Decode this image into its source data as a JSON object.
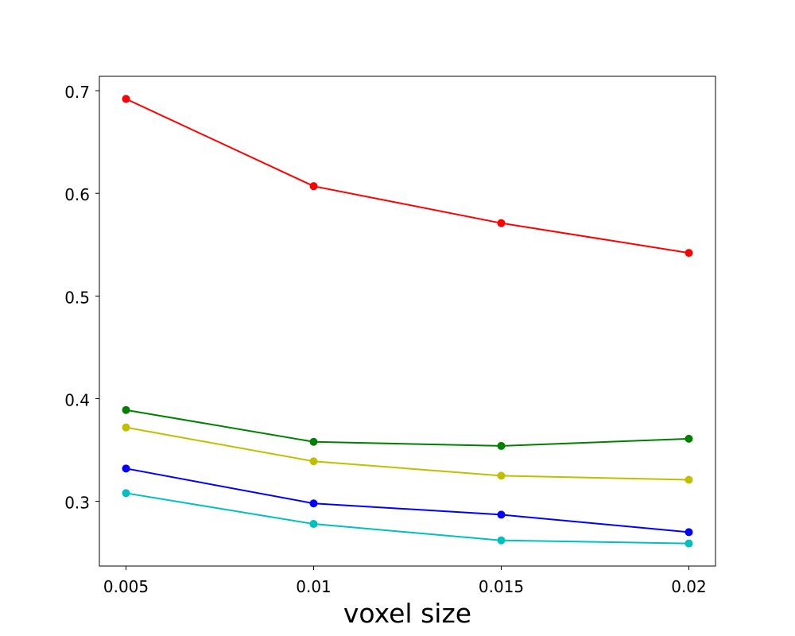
{
  "chart_data": {
    "type": "line",
    "title": "",
    "xlabel": "voxel size",
    "ylabel": "",
    "x": [
      0.005,
      0.01,
      0.015,
      0.02
    ],
    "x_tick_labels": [
      "0.005",
      "0.01",
      "0.015",
      "0.02"
    ],
    "xlim": [
      0.00429,
      0.02071
    ],
    "ylim": [
      0.237,
      0.714
    ],
    "y_ticks": [
      0.3,
      0.4,
      0.5,
      0.6,
      0.7
    ],
    "y_tick_labels": [
      "0.3",
      "0.4",
      "0.5",
      "0.6",
      "0.7"
    ],
    "grid": false,
    "legend": "none",
    "series": [
      {
        "color": "#ff0000",
        "values": [
          0.692,
          0.607,
          0.571,
          0.542
        ]
      },
      {
        "color": "#008000",
        "values": [
          0.389,
          0.358,
          0.354,
          0.361
        ]
      },
      {
        "color": "#bfbf00",
        "values": [
          0.372,
          0.339,
          0.325,
          0.321
        ]
      },
      {
        "color": "#0000ff",
        "values": [
          0.332,
          0.298,
          0.287,
          0.27
        ]
      },
      {
        "color": "#00bfbf",
        "values": [
          0.308,
          0.278,
          0.262,
          0.259
        ]
      }
    ]
  }
}
